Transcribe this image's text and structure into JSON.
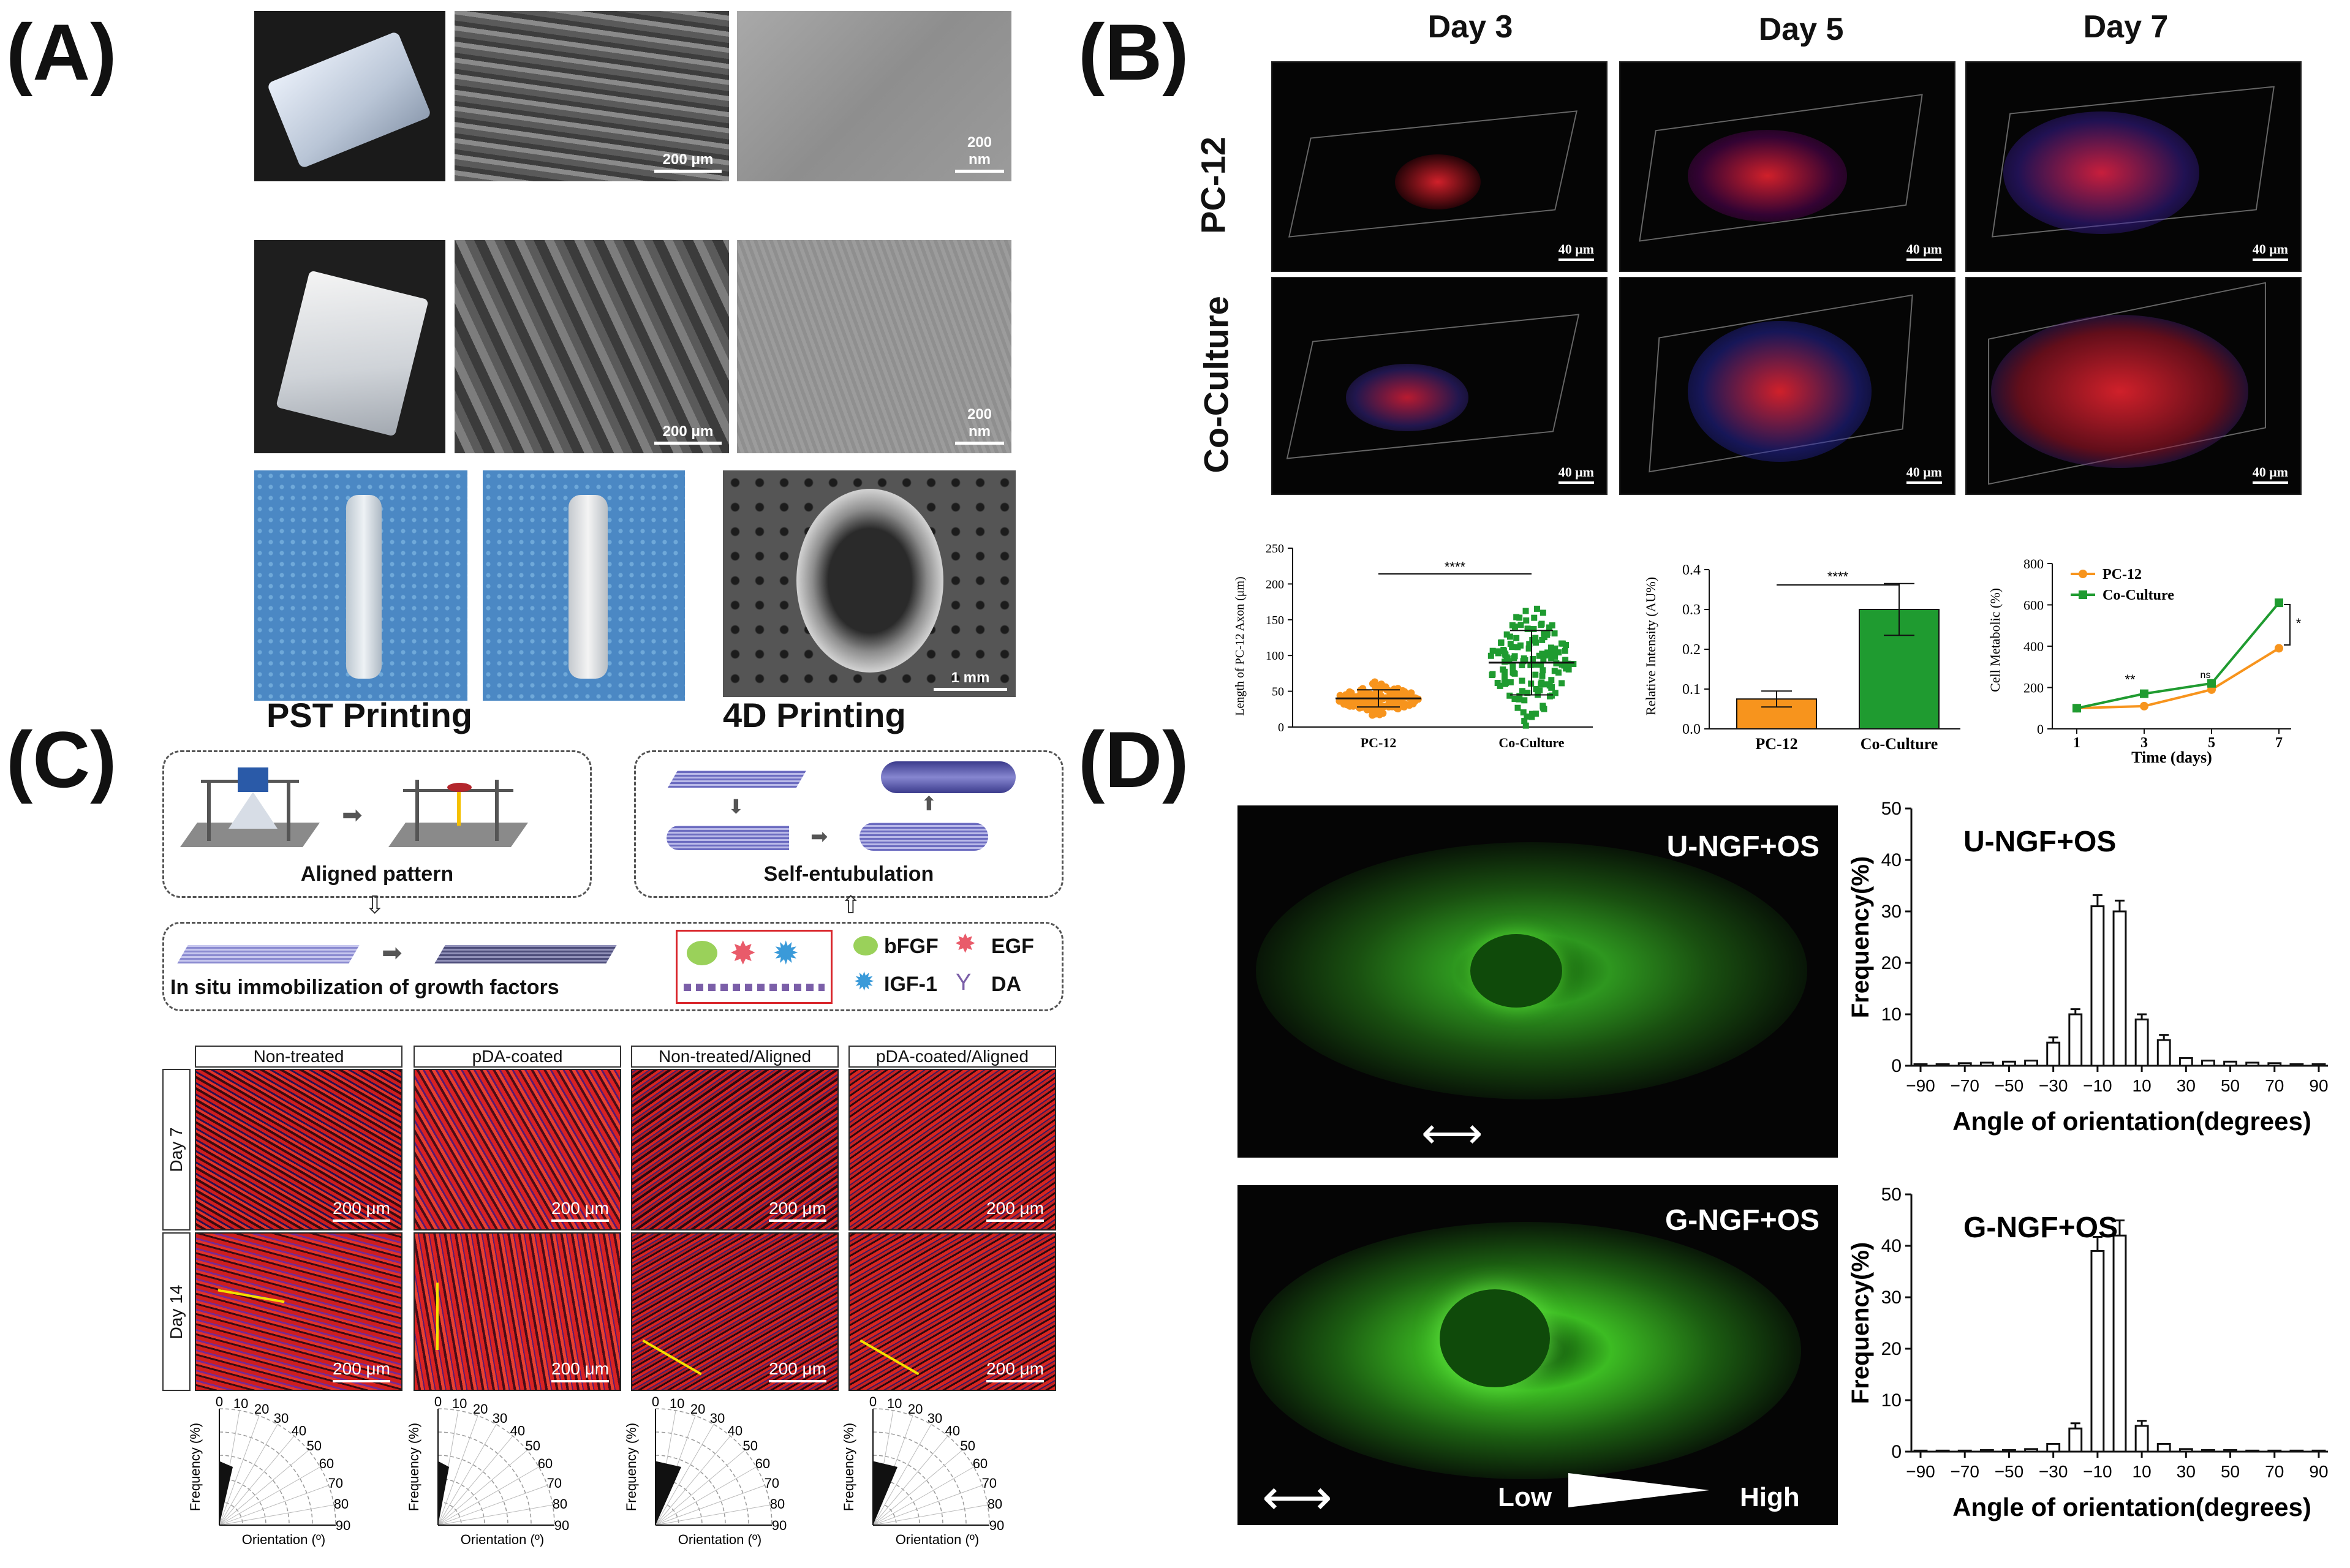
{
  "panels": {
    "A": {
      "letter": "(A)",
      "scalebars": [
        "200 μm",
        "200 nm",
        "200 μm",
        "200 nm",
        "1 mm"
      ],
      "captions": [
        "PST Printing",
        "4D Printing"
      ]
    },
    "B": {
      "letter": "(B)",
      "days": [
        "Day 3",
        "Day 5",
        "Day 7"
      ],
      "rows": [
        "PC-12",
        "Co-Culture"
      ],
      "scalebar": "40 μm"
    },
    "C": {
      "letter": "(C)",
      "box_labels": [
        "Aligned pattern",
        "Self-entubulation",
        "In situ immobilization of growth factors"
      ],
      "legend": [
        "bFGF",
        "EGF",
        "IGF-1",
        "DA"
      ],
      "column_headers": [
        "Non-treated",
        "pDA-coated",
        "Non-treated/Aligned",
        "pDA-coated/Aligned"
      ],
      "row_days": [
        "Day 7",
        "Day 14"
      ],
      "scalebar": "200 μm",
      "polar": {
        "ticks": [
          "0",
          "10",
          "20",
          "30",
          "40",
          "50",
          "60",
          "70",
          "80",
          "90"
        ],
        "ylabel": "Frequency (%)",
        "xlabel": "Orientation (º)"
      }
    },
    "D": {
      "letter": "(D)",
      "image_labels": [
        "U-NGF+OS",
        "G-NGF+OS"
      ],
      "gradient_labels": [
        "Low",
        "High"
      ]
    }
  },
  "chart_data": [
    {
      "type": "scatter",
      "ylabel": "Length of PC-12 Axon (μm)",
      "categories": [
        "PC-12",
        "Co-Culture"
      ],
      "means": [
        40,
        90
      ],
      "sd": [
        12,
        45
      ],
      "ylim": [
        0,
        250
      ],
      "yticks": [
        "0",
        "50",
        "100",
        "150",
        "200",
        "250"
      ],
      "significance": "****",
      "colors": [
        "#f7941d",
        "#1f9b30"
      ]
    },
    {
      "type": "bar",
      "ylabel": "Relative Intensity (AU%)",
      "categories": [
        "PC-12",
        "Co-Culture"
      ],
      "values": [
        0.075,
        0.3
      ],
      "errors": [
        0.02,
        0.065
      ],
      "ylim": [
        0,
        0.4
      ],
      "yticks": [
        "0.0",
        "0.1",
        "0.2",
        "0.3",
        "0.4"
      ],
      "significance": "****",
      "colors": [
        "#f7941d",
        "#1f9b30"
      ]
    },
    {
      "type": "line",
      "ylabel": "Cell Metabolic (%)",
      "xlabel": "Time (days)",
      "x": [
        1,
        3,
        5,
        7
      ],
      "xticks": [
        "1",
        "3",
        "5",
        "7"
      ],
      "yticks": [
        "0",
        "200",
        "400",
        "600",
        "800"
      ],
      "ylim": [
        0,
        800
      ],
      "series": [
        {
          "name": "PC-12",
          "values": [
            100,
            110,
            190,
            390
          ],
          "color": "#f7941d"
        },
        {
          "name": "Co-Culture",
          "values": [
            100,
            170,
            220,
            610
          ],
          "color": "#1f9b30"
        }
      ],
      "annotations": [
        "**",
        "ns",
        "*"
      ],
      "legend": "top-left"
    },
    {
      "type": "bar",
      "title": "U-NGF+OS",
      "ylabel": "Frequency(%)",
      "xlabel": "Angle of orientation(degrees)",
      "x": [
        -90,
        -80,
        -70,
        -60,
        -50,
        -40,
        -30,
        -20,
        -10,
        0,
        10,
        20,
        30,
        40,
        50,
        60,
        70,
        80,
        90
      ],
      "values": [
        0.3,
        0.3,
        0.5,
        0.6,
        0.8,
        1,
        4.5,
        10,
        31,
        30,
        9,
        5,
        1.5,
        1,
        0.8,
        0.6,
        0.5,
        0.3,
        0.3
      ],
      "xticks": [
        "-90",
        "-70",
        "-50",
        "-30",
        "-10",
        "10",
        "30",
        "50",
        "70",
        "90"
      ],
      "yticks": [
        "0",
        "10",
        "20",
        "30",
        "40",
        "50"
      ],
      "ylim": [
        0,
        50
      ]
    },
    {
      "type": "bar",
      "title": "G-NGF+OS",
      "ylabel": "Frequency(%)",
      "xlabel": "Angle of orientation(degrees)",
      "x": [
        -90,
        -80,
        -70,
        -60,
        -50,
        -40,
        -30,
        -20,
        -10,
        0,
        10,
        20,
        30,
        40,
        50,
        60,
        70,
        80,
        90
      ],
      "values": [
        0.2,
        0.2,
        0.2,
        0.3,
        0.3,
        0.5,
        1.5,
        4.5,
        39,
        42,
        5,
        1.5,
        0.5,
        0.3,
        0.3,
        0.2,
        0.2,
        0.2,
        0.2
      ],
      "xticks": [
        "-90",
        "-70",
        "-50",
        "-30",
        "-10",
        "10",
        "30",
        "50",
        "70",
        "90"
      ],
      "yticks": [
        "0",
        "10",
        "20",
        "30",
        "40",
        "50"
      ],
      "ylim": [
        0,
        50
      ]
    }
  ]
}
